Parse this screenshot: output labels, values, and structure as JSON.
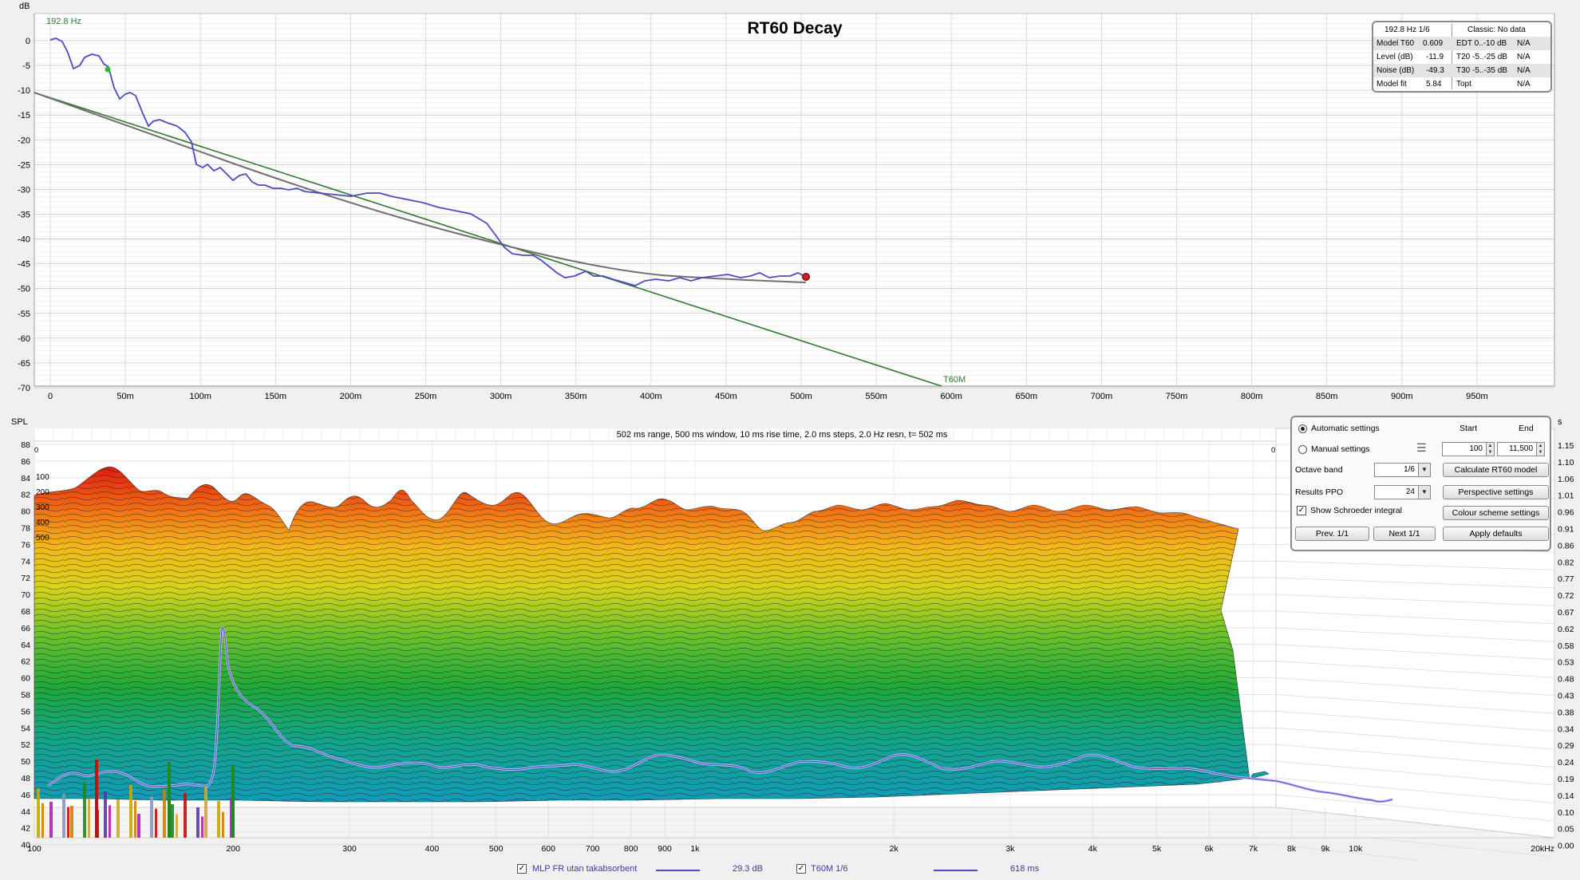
{
  "title": "RT60 Decay",
  "top_chart": {
    "y_unit": "dB",
    "band_label": "192.8 Hz",
    "y_ticks": [
      "0",
      "-5",
      "-10",
      "-15",
      "-20",
      "-25",
      "-30",
      "-35",
      "-40",
      "-45",
      "-50",
      "-55",
      "-60",
      "-65",
      "-70"
    ],
    "x_ticks": [
      "0",
      "50m",
      "100m",
      "150m",
      "200m",
      "250m",
      "300m",
      "350m",
      "400m",
      "450m",
      "500m",
      "550m",
      "600m",
      "650m",
      "700m",
      "750m",
      "800m",
      "850m",
      "900m",
      "950m"
    ],
    "fit_label": "T60M",
    "line_colors": {
      "decay": "#4c4cc0",
      "fit_line": "#2e7a2e",
      "model": "#707070"
    }
  },
  "rt60_info": {
    "header_left": "192.8 Hz 1/6",
    "header_right": "Classic: No data",
    "rows": [
      {
        "k1": "Model T60",
        "v1": "0.609",
        "k2": "EDT  0..-10 dB",
        "v2": "N/A"
      },
      {
        "k1": "Level (dB)",
        "v1": "-11.9",
        "k2": "T20 -5..-25 dB",
        "v2": "N/A"
      },
      {
        "k1": "Noise (dB)",
        "v1": "-49.3",
        "k2": "T30 -5..-35 dB",
        "v2": "N/A"
      },
      {
        "k1": "Model fit",
        "v1": "5.84",
        "k2": "Topt",
        "v2": "N/A"
      }
    ]
  },
  "waterfall": {
    "spl_label": "SPL",
    "s_label": "s",
    "info_line": "502 ms range, 500 ms window, 10 ms rise time, 2.0 ms steps,  2.0 Hz resn, t= 502 ms",
    "spl_ticks": [
      "88",
      "86",
      "84",
      "82",
      "80",
      "78",
      "76",
      "74",
      "72",
      "70",
      "68",
      "66",
      "64",
      "62",
      "60",
      "58",
      "56",
      "54",
      "52",
      "50",
      "48",
      "46",
      "44",
      "42",
      "40"
    ],
    "time_ticks": [
      "1.15",
      "1.10",
      "1.06",
      "1.01",
      "0.96",
      "0.91",
      "0.86",
      "0.82",
      "0.77",
      "0.72",
      "0.67",
      "0.62",
      "0.58",
      "0.53",
      "0.48",
      "0.43",
      "0.38",
      "0.34",
      "0.29",
      "0.24",
      "0.19",
      "0.14",
      "0.10",
      "0.05",
      "0.00"
    ],
    "freq_ticks": [
      "100",
      "200",
      "300",
      "400",
      "500",
      "600",
      "700",
      "800",
      "900",
      "1k",
      "2k",
      "3k",
      "4k",
      "5k",
      "6k",
      "7k",
      "8k",
      "9k",
      "10k",
      "20kHz"
    ],
    "depth_labels": [
      "100",
      "200",
      "300",
      "400",
      "500"
    ],
    "depth_zero_left": "0",
    "depth_zero_right": "0",
    "depth_300": "300"
  },
  "settings": {
    "automatic": "Automatic settings",
    "manual": "Manual settings",
    "start_header": "Start",
    "end_header": "End",
    "start_value": "100",
    "end_value": "11,500",
    "octave_label": "Octave band",
    "octave_value": "1/6",
    "ppo_label": "Results PPO",
    "ppo_value": "24",
    "schroeder_label": "Show Schroeder integral",
    "btn_calc": "Calculate RT60 model",
    "btn_perspective": "Perspective settings",
    "btn_colour": "Colour scheme settings",
    "btn_prev": "Prev. 1/1",
    "btn_next": "Next 1/1",
    "btn_defaults": "Apply defaults"
  },
  "legend": {
    "item1": "MLP FR utan takabsorbent",
    "value1": "29.3 dB",
    "item2": "T60M 1/6",
    "value2": "618 ms",
    "line_color": "#4c4cc0"
  }
}
